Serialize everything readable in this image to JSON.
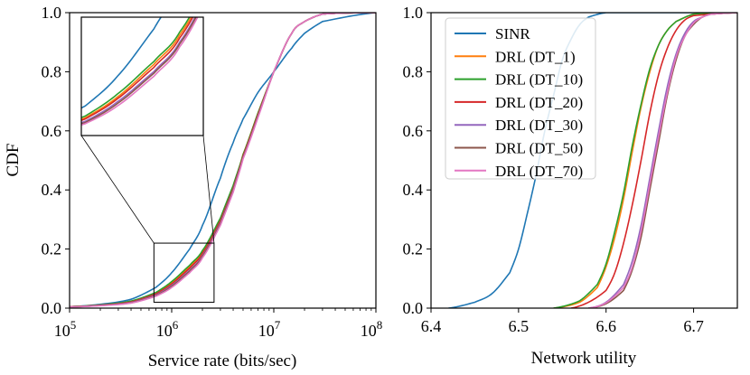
{
  "chart_data": [
    {
      "type": "line",
      "xlabel": "Service rate (bits/sec)",
      "ylabel": "CDF",
      "xscale": "log",
      "xlim": [
        100000,
        100000000
      ],
      "ylim": [
        0,
        1
      ],
      "x_tick_labels": [
        {
          "base": "10",
          "exp": "5"
        },
        {
          "base": "10",
          "exp": "6"
        },
        {
          "base": "10",
          "exp": "7"
        },
        {
          "base": "10",
          "exp": "8"
        }
      ],
      "y_tick_labels": [
        "0.0",
        "0.2",
        "0.4",
        "0.6",
        "0.8",
        "1.0"
      ],
      "legend": "none",
      "inset": {
        "xlim": [
          670000,
          2600000
        ],
        "ylim": [
          0.02,
          0.22
        ],
        "placement": "top-left"
      },
      "series": [
        {
          "name": "SINR",
          "color": "#1f77b4",
          "x": [
            100000,
            200000,
            400000,
            700000,
            1000000,
            1500000,
            2000000,
            3000000,
            4000000,
            5000000,
            7000000,
            10000000,
            15000000,
            20000000,
            30000000,
            100000000
          ],
          "y": [
            0.005,
            0.013,
            0.03,
            0.07,
            0.12,
            0.2,
            0.28,
            0.44,
            0.56,
            0.64,
            0.73,
            0.8,
            0.88,
            0.93,
            0.97,
            1.0
          ]
        },
        {
          "name": "DRL (DT_1)",
          "color": "#ff7f0e",
          "x": [
            100000,
            200000,
            400000,
            700000,
            1000000,
            1500000,
            2000000,
            3000000,
            4000000,
            5000000,
            7000000,
            10000000,
            15000000,
            20000000,
            30000000,
            100000000
          ],
          "y": [
            0.005,
            0.01,
            0.022,
            0.05,
            0.085,
            0.14,
            0.19,
            0.3,
            0.41,
            0.52,
            0.66,
            0.8,
            0.93,
            0.97,
            0.995,
            1.0
          ]
        },
        {
          "name": "DRL (DT_10)",
          "color": "#2ca02c",
          "x": [
            100000,
            200000,
            400000,
            700000,
            1000000,
            1500000,
            2000000,
            3000000,
            4000000,
            5000000,
            7000000,
            10000000,
            15000000,
            20000000,
            30000000,
            100000000
          ],
          "y": [
            0.005,
            0.011,
            0.024,
            0.053,
            0.09,
            0.145,
            0.195,
            0.305,
            0.415,
            0.52,
            0.66,
            0.8,
            0.93,
            0.97,
            0.995,
            1.0
          ]
        },
        {
          "name": "DRL (DT_20)",
          "color": "#d62728",
          "x": [
            100000,
            200000,
            400000,
            700000,
            1000000,
            1500000,
            2000000,
            3000000,
            4000000,
            5000000,
            7000000,
            10000000,
            15000000,
            20000000,
            30000000,
            100000000
          ],
          "y": [
            0.005,
            0.01,
            0.021,
            0.048,
            0.082,
            0.135,
            0.185,
            0.295,
            0.405,
            0.515,
            0.655,
            0.8,
            0.93,
            0.97,
            0.995,
            1.0
          ]
        },
        {
          "name": "DRL (DT_30)",
          "color": "#9467bd",
          "x": [
            100000,
            200000,
            400000,
            700000,
            1000000,
            1500000,
            2000000,
            3000000,
            4000000,
            5000000,
            7000000,
            10000000,
            15000000,
            20000000,
            30000000,
            100000000
          ],
          "y": [
            0.004,
            0.009,
            0.019,
            0.044,
            0.077,
            0.128,
            0.178,
            0.288,
            0.4,
            0.51,
            0.65,
            0.8,
            0.93,
            0.97,
            0.995,
            1.0
          ]
        },
        {
          "name": "DRL (DT_50)",
          "color": "#8c564b",
          "x": [
            100000,
            200000,
            400000,
            700000,
            1000000,
            1500000,
            2000000,
            3000000,
            4000000,
            5000000,
            7000000,
            10000000,
            15000000,
            20000000,
            30000000,
            100000000
          ],
          "y": [
            0.004,
            0.009,
            0.018,
            0.042,
            0.074,
            0.125,
            0.175,
            0.285,
            0.397,
            0.508,
            0.648,
            0.8,
            0.93,
            0.97,
            0.995,
            1.0
          ]
        },
        {
          "name": "DRL (DT_70)",
          "color": "#e377c2",
          "x": [
            100000,
            200000,
            400000,
            700000,
            1000000,
            1500000,
            2000000,
            3000000,
            4000000,
            5000000,
            7000000,
            10000000,
            15000000,
            20000000,
            30000000,
            100000000
          ],
          "y": [
            0.004,
            0.008,
            0.017,
            0.04,
            0.07,
            0.12,
            0.17,
            0.28,
            0.392,
            0.505,
            0.645,
            0.8,
            0.93,
            0.97,
            0.995,
            1.0
          ]
        }
      ]
    },
    {
      "type": "line",
      "xlabel": "Network utility",
      "ylabel": "",
      "xlim": [
        6.4,
        6.75
      ],
      "ylim": [
        0,
        1
      ],
      "x_tick_labels": [
        "6.4",
        "6.5",
        "6.6",
        "6.7"
      ],
      "y_tick_labels": [
        "0.0",
        "0.2",
        "0.4",
        "0.6",
        "0.8",
        "1.0"
      ],
      "legend": "top-left",
      "series": [
        {
          "name": "SINR",
          "color": "#1f77b4",
          "x": [
            6.42,
            6.45,
            6.47,
            6.49,
            6.5,
            6.51,
            6.52,
            6.53,
            6.54,
            6.55,
            6.56,
            6.57,
            6.58,
            6.6,
            6.75
          ],
          "y": [
            0.0,
            0.02,
            0.05,
            0.12,
            0.2,
            0.32,
            0.45,
            0.6,
            0.72,
            0.84,
            0.91,
            0.96,
            0.985,
            1.0,
            1.0
          ]
        },
        {
          "name": "DRL (DT_1)",
          "color": "#ff7f0e",
          "x": [
            6.54,
            6.57,
            6.59,
            6.6,
            6.61,
            6.62,
            6.63,
            6.64,
            6.65,
            6.66,
            6.67,
            6.68,
            6.7,
            6.75
          ],
          "y": [
            0.0,
            0.02,
            0.07,
            0.14,
            0.24,
            0.37,
            0.53,
            0.68,
            0.8,
            0.89,
            0.94,
            0.97,
            0.995,
            1.0
          ]
        },
        {
          "name": "DRL (DT_10)",
          "color": "#2ca02c",
          "x": [
            6.54,
            6.57,
            6.59,
            6.6,
            6.61,
            6.62,
            6.63,
            6.64,
            6.65,
            6.66,
            6.67,
            6.68,
            6.7,
            6.75
          ],
          "y": [
            0.0,
            0.025,
            0.08,
            0.15,
            0.26,
            0.39,
            0.55,
            0.69,
            0.81,
            0.89,
            0.94,
            0.97,
            0.995,
            1.0
          ]
        },
        {
          "name": "DRL (DT_20)",
          "color": "#d62728",
          "x": [
            6.56,
            6.58,
            6.6,
            6.61,
            6.62,
            6.63,
            6.64,
            6.65,
            6.66,
            6.67,
            6.68,
            6.69,
            6.7,
            6.75
          ],
          "y": [
            0.0,
            0.02,
            0.06,
            0.12,
            0.22,
            0.35,
            0.5,
            0.66,
            0.79,
            0.88,
            0.94,
            0.975,
            0.99,
            1.0
          ]
        },
        {
          "name": "DRL (DT_30)",
          "color": "#9467bd",
          "x": [
            6.58,
            6.6,
            6.62,
            6.63,
            6.64,
            6.65,
            6.66,
            6.67,
            6.68,
            6.69,
            6.7,
            6.71,
            6.72,
            6.75
          ],
          "y": [
            0.0,
            0.02,
            0.08,
            0.16,
            0.28,
            0.44,
            0.6,
            0.75,
            0.86,
            0.93,
            0.97,
            0.985,
            0.995,
            1.0
          ]
        },
        {
          "name": "DRL (DT_50)",
          "color": "#8c564b",
          "x": [
            6.58,
            6.6,
            6.62,
            6.63,
            6.64,
            6.65,
            6.66,
            6.67,
            6.68,
            6.69,
            6.7,
            6.71,
            6.72,
            6.75
          ],
          "y": [
            0.0,
            0.015,
            0.06,
            0.13,
            0.24,
            0.4,
            0.56,
            0.72,
            0.84,
            0.92,
            0.96,
            0.985,
            0.995,
            1.0
          ]
        },
        {
          "name": "DRL (DT_70)",
          "color": "#e377c2",
          "x": [
            6.58,
            6.6,
            6.62,
            6.63,
            6.64,
            6.65,
            6.66,
            6.67,
            6.68,
            6.69,
            6.7,
            6.71,
            6.72,
            6.75
          ],
          "y": [
            0.0,
            0.018,
            0.07,
            0.14,
            0.26,
            0.42,
            0.58,
            0.73,
            0.85,
            0.92,
            0.965,
            0.985,
            0.995,
            1.0
          ]
        }
      ]
    }
  ]
}
